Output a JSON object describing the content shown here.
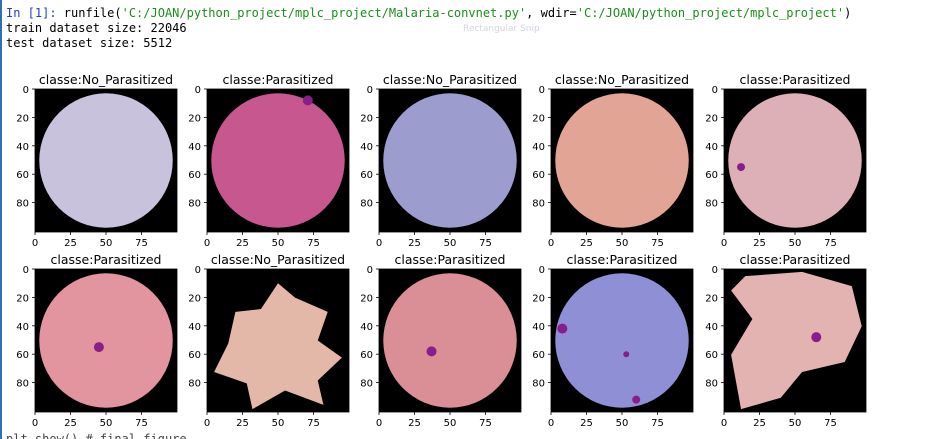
{
  "console": {
    "prompt": "In [1]: ",
    "cmd_start": "runfile(",
    "file_arg": "'C:/JOAN/python_project/mplc_project/Malaria-convnet.py'",
    "wdir_label": ", wdir=",
    "wdir_arg": "'C:/JOAN/python_project/mplc_project'",
    "cmd_end": ")",
    "train_line": "train dataset size: 22046",
    "test_line": "test dataset size: 5512"
  },
  "ghost_label": "Rectangular Snip",
  "cutoff_line": "plt.show() # final figure",
  "figure": {
    "xticks": [
      "0",
      "25",
      "50",
      "75"
    ],
    "yticks": [
      "0",
      "20",
      "40",
      "60",
      "80"
    ],
    "panels": [
      {
        "title": "classe:No_Parasitized",
        "fill": "#c8c2dc",
        "shape": "circle",
        "spots": []
      },
      {
        "title": "classe:Parasitized",
        "fill": "#c7578f",
        "shape": "circle",
        "spots": [
          {
            "x": 71,
            "y": 8,
            "r": 5
          }
        ]
      },
      {
        "title": "classe:No_Parasitized",
        "fill": "#9c9ccf",
        "shape": "circle",
        "spots": []
      },
      {
        "title": "classe:No_Parasitized",
        "fill": "#e2a495",
        "shape": "circle",
        "spots": []
      },
      {
        "title": "classe:Parasitized",
        "fill": "#dcb0b6",
        "shape": "circle",
        "spots": [
          {
            "x": 12,
            "y": 55,
            "r": 4
          }
        ]
      },
      {
        "title": "classe:Parasitized",
        "fill": "#e2949f",
        "shape": "circle",
        "spots": [
          {
            "x": 45,
            "y": 55,
            "r": 5
          }
        ]
      },
      {
        "title": "classe:No_Parasitized",
        "fill": "#e3b8a8",
        "shape": "star",
        "spots": []
      },
      {
        "title": "classe:Parasitized",
        "fill": "#d98f95",
        "shape": "circle",
        "spots": [
          {
            "x": 37,
            "y": 58,
            "r": 5
          }
        ]
      },
      {
        "title": "classe:Parasitized",
        "fill": "#8f8fd6",
        "shape": "circle",
        "spots": [
          {
            "x": 8,
            "y": 42,
            "r": 5
          },
          {
            "x": 53,
            "y": 60,
            "r": 3
          },
          {
            "x": 60,
            "y": 92,
            "r": 4
          }
        ]
      },
      {
        "title": "classe:Parasitized",
        "fill": "#e3b3b1",
        "shape": "blob",
        "spots": [
          {
            "x": 65,
            "y": 48,
            "r": 5
          }
        ]
      }
    ]
  }
}
